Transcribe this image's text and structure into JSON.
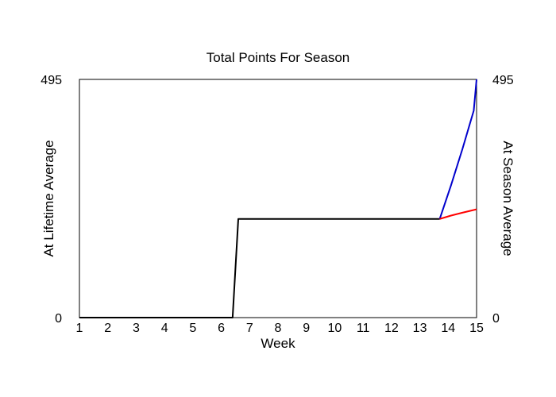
{
  "chart_data": {
    "type": "line",
    "title": "Total Points For Season",
    "xlabel": "Week",
    "ylabel_left": "At Lifetime Average",
    "ylabel_right": "At Season Average",
    "xlim": [
      1,
      15
    ],
    "ylim": [
      0,
      495
    ],
    "x_ticks": [
      1,
      2,
      3,
      4,
      5,
      6,
      7,
      8,
      9,
      10,
      11,
      12,
      13,
      14,
      15
    ],
    "y_ticks_left": [
      0,
      495
    ],
    "y_ticks_right": [
      0,
      495
    ],
    "grid": false,
    "colors": {
      "actual": "#000000",
      "lifetime": "#0000cc",
      "season": "#ff0000",
      "frame": "#000000"
    },
    "series": [
      {
        "color_key": "actual",
        "x": [
          1,
          6.4,
          6.6,
          13.7
        ],
        "y": [
          0,
          0,
          205,
          205
        ]
      },
      {
        "color_key": "lifetime",
        "x": [
          13.7,
          14.1,
          14.5,
          14.9,
          15
        ],
        "y": [
          205,
          275,
          350,
          430,
          495
        ]
      },
      {
        "color_key": "season",
        "x": [
          13.7,
          14.1,
          14.5,
          15
        ],
        "y": [
          205,
          212,
          218,
          225
        ]
      }
    ]
  }
}
